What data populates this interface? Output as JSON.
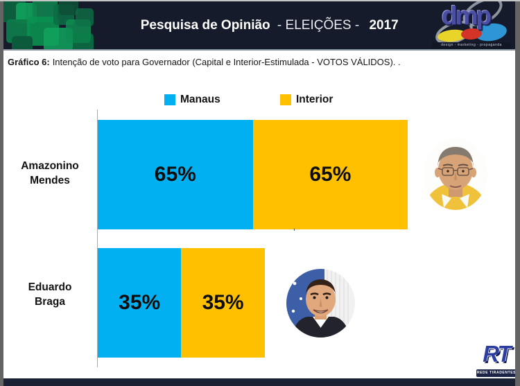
{
  "header": {
    "title_main": "Pesquisa de Opinião",
    "title_mid": "- ELEIÇÕES -",
    "title_year": "2017",
    "dmp_logo": {
      "text": "dmp",
      "tagline": "design - marketing - propaganda"
    }
  },
  "caption": {
    "prefix": "Gráfico 6:",
    "text": "Intenção de voto para Governador (Capital e Interior-Estimulada - VOTOS VÁLIDOS). ."
  },
  "legend": {
    "items": [
      {
        "label": "Manaus",
        "color": "#00b0f0"
      },
      {
        "label": "Interior",
        "color": "#ffc000"
      }
    ]
  },
  "chart_data": {
    "type": "bar",
    "orientation": "horizontal",
    "stacked": true,
    "title": "Intenção de voto para Governador (Capital e Interior-Estimulada - VOTOS VÁLIDOS)",
    "categories": [
      "Amazonino Mendes",
      "Eduardo Braga"
    ],
    "series": [
      {
        "name": "Manaus",
        "color": "#00b0f0",
        "values": [
          65,
          35
        ]
      },
      {
        "name": "Interior",
        "color": "#ffc000",
        "values": [
          65,
          35
        ]
      }
    ],
    "value_label_format": "percent",
    "legend_position": "top",
    "grid": false,
    "xlim": [
      0,
      130
    ]
  },
  "rows": [
    {
      "name_line1": "Amazonino",
      "name_line2": "Mendes",
      "manaus_label": "65%",
      "interior_label": "65%"
    },
    {
      "name_line1": "Eduardo",
      "name_line2": "Braga",
      "manaus_label": "35%",
      "interior_label": "35%"
    }
  ],
  "stray_mark": "’",
  "footer": {
    "rt_text": "RT",
    "rt_tagline": "REDE TIRADENTES"
  }
}
